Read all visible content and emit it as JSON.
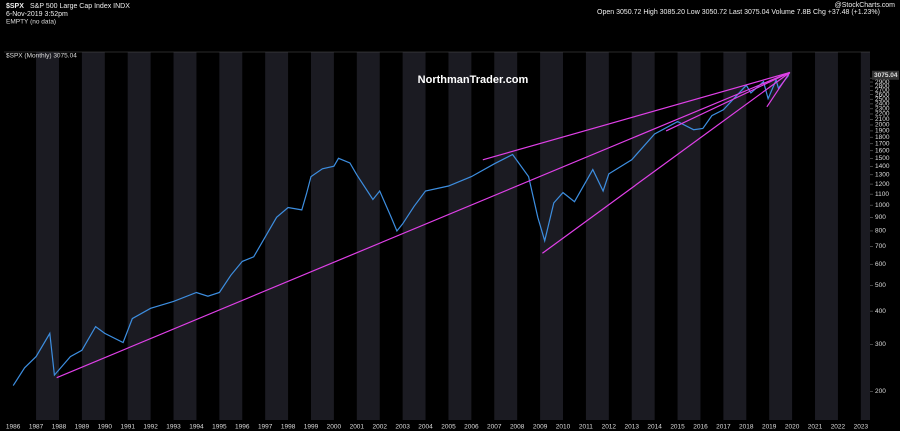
{
  "chart_data": {
    "type": "line",
    "symbol": "$SPX",
    "name": "S&P 500 Large Cap Index INDX",
    "timestamp": "6-Nov-2019 3:52pm",
    "quote": "Open 3050.72  High 3085.20  Low 3050.72  Last 3075.04  Volume 7.8B  Chg +37.48 (+1.23%)",
    "source": "@StockCharts.com",
    "legend_empty": "EMPTY (no data)",
    "legend_series": "$SPX (Monthly) 3075.04",
    "watermark": "NorthmanTrader.com",
    "last": 3075.04,
    "log_scale": true,
    "series": [
      {
        "name": "$SPX",
        "color": "#3d8ee0",
        "x": [
          1986.0,
          1986.5,
          1987.0,
          1987.6,
          1987.8,
          1988.5,
          1989.0,
          1989.6,
          1990.0,
          1990.8,
          1991.2,
          1992.0,
          1993.0,
          1994.0,
          1994.5,
          1995.0,
          1995.5,
          1996.0,
          1996.5,
          1997.0,
          1997.5,
          1998.0,
          1998.6,
          1998.8,
          1999.0,
          1999.5,
          2000.0,
          2000.2,
          2000.7,
          2001.0,
          2001.7,
          2002.0,
          2002.5,
          2002.75,
          2003.0,
          2003.5,
          2004.0,
          2005.0,
          2006.0,
          2007.0,
          2007.8,
          2008.5,
          2008.9,
          2009.2,
          2009.6,
          2010.0,
          2010.5,
          2011.3,
          2011.75,
          2012.0,
          2013.0,
          2014.0,
          2015.0,
          2015.7,
          2016.1,
          2016.5,
          2017.0,
          2018.0,
          2018.2,
          2018.75,
          2018.95,
          2019.3,
          2019.4,
          2019.85
        ],
        "values": [
          210,
          245,
          270,
          330,
          230,
          270,
          285,
          350,
          330,
          305,
          375,
          410,
          435,
          470,
          455,
          470,
          545,
          615,
          640,
          760,
          900,
          980,
          960,
          1100,
          1280,
          1370,
          1400,
          1500,
          1440,
          1300,
          1050,
          1130,
          900,
          800,
          850,
          990,
          1130,
          1180,
          1280,
          1430,
          1550,
          1280,
          900,
          735,
          1020,
          1115,
          1030,
          1360,
          1130,
          1310,
          1480,
          1850,
          2060,
          1920,
          1940,
          2170,
          2280,
          2820,
          2640,
          2910,
          2510,
          2950,
          2750,
          3075
        ]
      }
    ],
    "trendlines": [
      {
        "color": "#e040e8",
        "x": [
          1987.9,
          2019.9
        ],
        "y": [
          225,
          3150
        ]
      },
      {
        "color": "#e040e8",
        "x": [
          2006.5,
          2019.9
        ],
        "y": [
          1480,
          3150
        ]
      },
      {
        "color": "#e040e8",
        "x": [
          2009.1,
          2019.9
        ],
        "y": [
          660,
          3150
        ]
      },
      {
        "color": "#e040e8",
        "x": [
          2014.5,
          2019.9
        ],
        "y": [
          1900,
          3150
        ]
      },
      {
        "color": "#e040e8",
        "x": [
          2018.9,
          2019.9
        ],
        "y": [
          2340,
          3150
        ]
      }
    ],
    "xlim": [
      1985.6,
      2023.4
    ],
    "xticks": [
      1986,
      1987,
      1988,
      1989,
      1990,
      1991,
      1992,
      1993,
      1994,
      1995,
      1996,
      1997,
      1998,
      1999,
      2000,
      2001,
      2002,
      2003,
      2004,
      2005,
      2006,
      2007,
      2008,
      2009,
      2010,
      2011,
      2012,
      2013,
      2014,
      2015,
      2016,
      2017,
      2018,
      2019,
      2020,
      2021,
      2022,
      2023
    ],
    "ylim": [
      156,
      3760
    ],
    "yticks": [
      200,
      300,
      400,
      500,
      600,
      700,
      800,
      900,
      1000,
      1100,
      1200,
      1300,
      1400,
      1500,
      1600,
      1700,
      1800,
      1900,
      2000,
      2100,
      2200,
      2300,
      2400,
      2500,
      2600,
      2700,
      2800,
      2900,
      3000
    ]
  }
}
